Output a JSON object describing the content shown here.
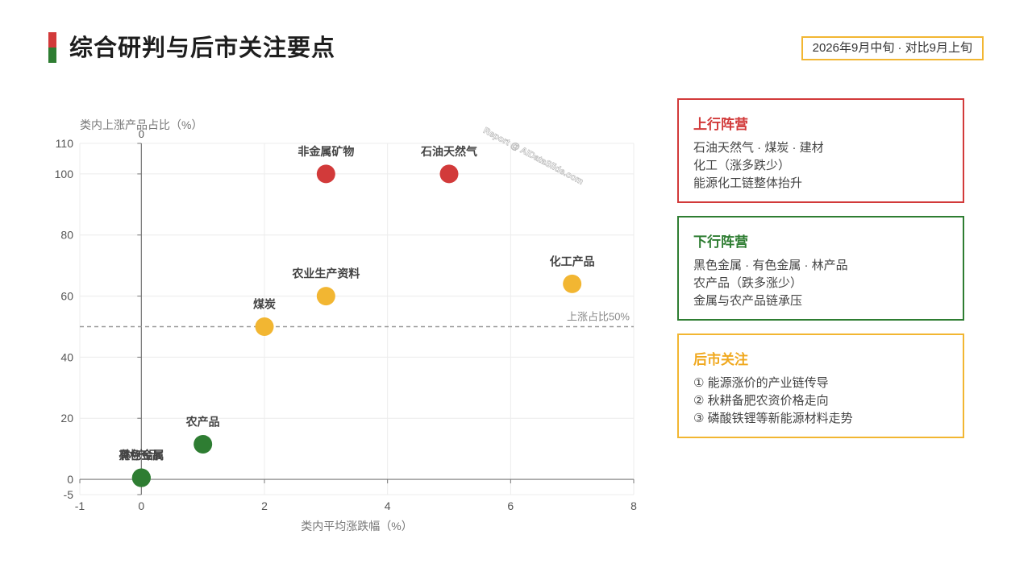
{
  "header": {
    "title": "综合研判与后市关注要点",
    "badge": "2026年9月中旬 · 对比9月上旬"
  },
  "colors": {
    "up": "#d23a3a",
    "down": "#2e7d32",
    "neutral": "#f2b632"
  },
  "chart_data": {
    "type": "scatter",
    "xlabel": "类内平均涨跌幅（%）",
    "ylabel": "类内上涨产品占比（%）",
    "xlim": [
      -1,
      8
    ],
    "ylim": [
      -5,
      110
    ],
    "xticks": [
      -1,
      0,
      2,
      4,
      6,
      8
    ],
    "yticks": [
      -5,
      0,
      20,
      40,
      60,
      80,
      100,
      110
    ],
    "top_axis_label": "0",
    "reference_line": {
      "y": 50,
      "label": "上涨占比50%"
    },
    "grid": true,
    "points": [
      {
        "label": "非金属矿物",
        "x": 3,
        "y": 100,
        "group": "up"
      },
      {
        "label": "石油天然气",
        "x": 5,
        "y": 100,
        "group": "up"
      },
      {
        "label": "化工产品",
        "x": 7,
        "y": 64,
        "group": "neutral"
      },
      {
        "label": "农业生产资料",
        "x": 3,
        "y": 60,
        "group": "neutral"
      },
      {
        "label": "煤炭",
        "x": 2,
        "y": 50,
        "group": "neutral"
      },
      {
        "label": "农产品",
        "x": 1,
        "y": 11.5,
        "group": "down"
      },
      {
        "label": "黑色金属",
        "x": 0,
        "y": 0.5,
        "group": "down"
      },
      {
        "label": "有色金属",
        "x": 0,
        "y": 0.5,
        "group": "down"
      },
      {
        "label": "林产品",
        "x": 0,
        "y": 0.5,
        "group": "down"
      }
    ]
  },
  "watermark": "Report @ AIDataSlide.com",
  "panels": {
    "up": {
      "title": "上行阵营",
      "lines": [
        "石油天然气 · 煤炭 · 建材",
        "化工（涨多跌少）",
        "能源化工链整体抬升"
      ]
    },
    "down": {
      "title": "下行阵营",
      "lines": [
        "黑色金属 · 有色金属 · 林产品",
        "农产品（跌多涨少）",
        "金属与农产品链承压"
      ]
    },
    "watch": {
      "title": "后市关注",
      "lines": [
        "① 能源涨价的产业链传导",
        "② 秋耕备肥农资价格走向",
        "③ 磷酸铁锂等新能源材料走势"
      ]
    }
  }
}
